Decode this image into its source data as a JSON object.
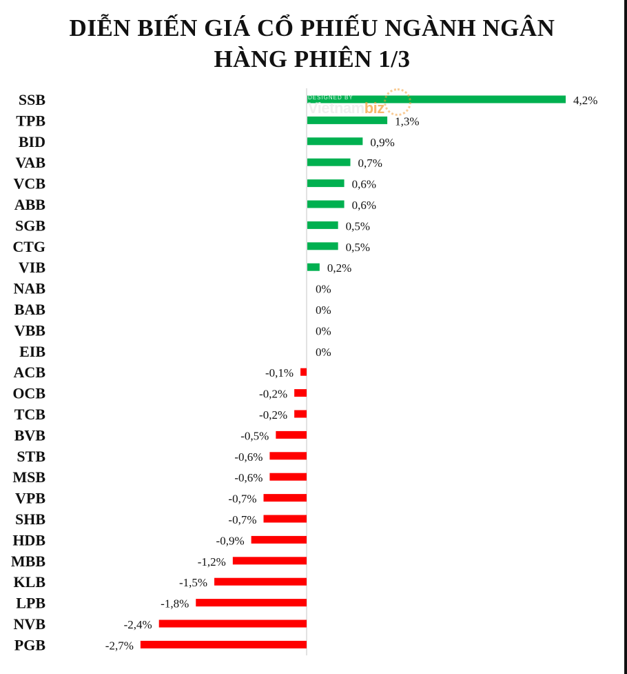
{
  "title_line1": "DIỄN BIẾN GIÁ CỔ PHIẾU NGÀNH NGÂN",
  "title_line2": "HÀNG PHIÊN 1/3",
  "watermark": {
    "small": "DESIGNED BY",
    "main_a": "Vietnam",
    "main_b": "biz"
  },
  "colors": {
    "positive": "#00b050",
    "negative": "#ff0000",
    "axis": "#d9d9d9"
  },
  "chart_data": {
    "type": "bar",
    "orientation": "horizontal",
    "title": "DIỄN BIẾN GIÁ CỔ PHIẾU NGÀNH NGÂN HÀNG PHIÊN 1/3",
    "categories": [
      "SSB",
      "TPB",
      "BID",
      "VAB",
      "VCB",
      "ABB",
      "SGB",
      "CTG",
      "VIB",
      "NAB",
      "BAB",
      "VBB",
      "EIB",
      "ACB",
      "OCB",
      "TCB",
      "BVB",
      "STB",
      "MSB",
      "VPB",
      "SHB",
      "HDB",
      "MBB",
      "KLB",
      "LPB",
      "NVB",
      "PGB"
    ],
    "values": [
      4.2,
      1.3,
      0.9,
      0.7,
      0.6,
      0.6,
      0.5,
      0.5,
      0.2,
      0,
      0,
      0,
      0,
      -0.1,
      -0.2,
      -0.2,
      -0.5,
      -0.6,
      -0.6,
      -0.7,
      -0.7,
      -0.9,
      -1.2,
      -1.5,
      -1.8,
      -2.4,
      -2.7
    ],
    "labels": [
      "4,2%",
      "1,3%",
      "0,9%",
      "0,7%",
      "0,6%",
      "0,6%",
      "0,5%",
      "0,5%",
      "0,2%",
      "0%",
      "0%",
      "0%",
      "0%",
      "-0,1%",
      "-0,2%",
      "-0,2%",
      "-0,5%",
      "-0,6%",
      "-0,6%",
      "-0,7%",
      "-0,7%",
      "-0,9%",
      "-1,2%",
      "-1,5%",
      "-1,8%",
      "-2,4%",
      "-2,7%"
    ],
    "unit": "%",
    "grid": false,
    "legend": "none"
  }
}
